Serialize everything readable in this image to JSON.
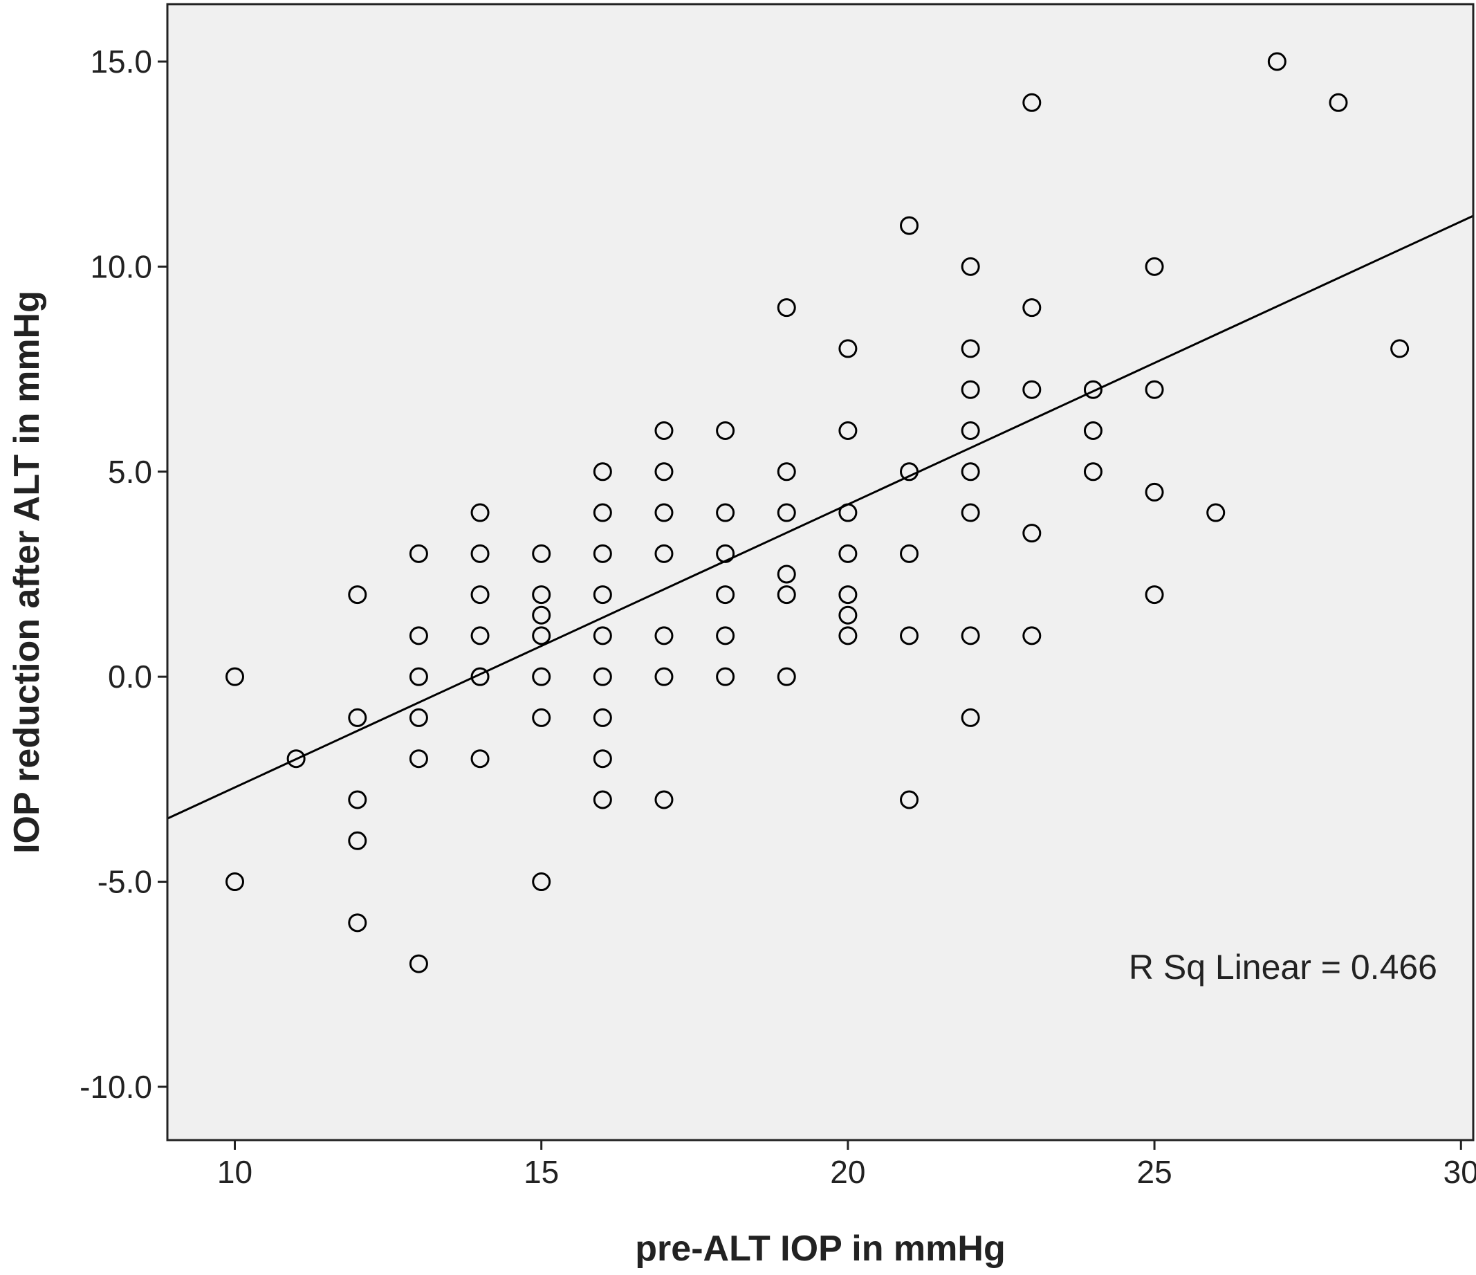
{
  "chart_data": {
    "type": "scatter",
    "xlabel": "pre-ALT IOP in mmHg",
    "ylabel": "IOP reduction after ALT in mmHg",
    "xlim": [
      8.9,
      30.2
    ],
    "ylim": [
      -11.3,
      16.4
    ],
    "xticks": [
      "10",
      "15",
      "20",
      "25",
      "30"
    ],
    "yticks": [
      "-10.0",
      "-5.0",
      "0.0",
      "5.0",
      "10.0",
      "15.0"
    ],
    "grid": false,
    "background": "#f0f0f0",
    "marker": "open-circle",
    "points": [
      [
        10,
        0
      ],
      [
        10,
        -5
      ],
      [
        11,
        -2
      ],
      [
        12,
        2
      ],
      [
        12,
        -1
      ],
      [
        12,
        -3
      ],
      [
        12,
        -4
      ],
      [
        12,
        -6
      ],
      [
        13,
        3
      ],
      [
        13,
        1
      ],
      [
        13,
        0
      ],
      [
        13,
        -1
      ],
      [
        13,
        -2
      ],
      [
        13,
        -7
      ],
      [
        14,
        4
      ],
      [
        14,
        3
      ],
      [
        14,
        2
      ],
      [
        14,
        1
      ],
      [
        14,
        0
      ],
      [
        14,
        -2
      ],
      [
        15,
        3
      ],
      [
        15,
        2
      ],
      [
        15,
        1.5
      ],
      [
        15,
        1
      ],
      [
        15,
        0
      ],
      [
        15,
        -1
      ],
      [
        15,
        -5
      ],
      [
        16,
        5
      ],
      [
        16,
        4
      ],
      [
        16,
        3
      ],
      [
        16,
        2
      ],
      [
        16,
        1
      ],
      [
        16,
        0
      ],
      [
        16,
        -1
      ],
      [
        16,
        -2
      ],
      [
        16,
        -3
      ],
      [
        17,
        6
      ],
      [
        17,
        5
      ],
      [
        17,
        4
      ],
      [
        17,
        3
      ],
      [
        17,
        1
      ],
      [
        17,
        0
      ],
      [
        17,
        -3
      ],
      [
        18,
        6
      ],
      [
        18,
        4
      ],
      [
        18,
        3
      ],
      [
        18,
        2
      ],
      [
        18,
        1
      ],
      [
        18,
        0
      ],
      [
        19,
        9
      ],
      [
        19,
        5
      ],
      [
        19,
        4
      ],
      [
        19,
        2.5
      ],
      [
        19,
        2
      ],
      [
        19,
        0
      ],
      [
        20,
        8
      ],
      [
        20,
        6
      ],
      [
        20,
        4
      ],
      [
        20,
        3
      ],
      [
        20,
        2
      ],
      [
        20,
        1.5
      ],
      [
        20,
        1
      ],
      [
        21,
        11
      ],
      [
        21,
        5
      ],
      [
        21,
        3
      ],
      [
        21,
        1
      ],
      [
        21,
        -3
      ],
      [
        22,
        10
      ],
      [
        22,
        8
      ],
      [
        22,
        7
      ],
      [
        22,
        6
      ],
      [
        22,
        5
      ],
      [
        22,
        4
      ],
      [
        22,
        1
      ],
      [
        22,
        -1
      ],
      [
        23,
        14
      ],
      [
        23,
        9
      ],
      [
        23,
        7
      ],
      [
        23,
        3.5
      ],
      [
        23,
        1
      ],
      [
        24,
        7
      ],
      [
        24,
        6
      ],
      [
        24,
        5
      ],
      [
        25,
        10
      ],
      [
        25,
        7
      ],
      [
        25,
        4.5
      ],
      [
        25,
        2
      ],
      [
        26,
        4
      ],
      [
        27,
        15
      ],
      [
        28,
        14
      ],
      [
        29,
        8
      ]
    ],
    "fit_line": {
      "type": "linear",
      "slope": 0.69,
      "intercept": -9.6
    },
    "annotation": "R Sq Linear = 0.466"
  }
}
